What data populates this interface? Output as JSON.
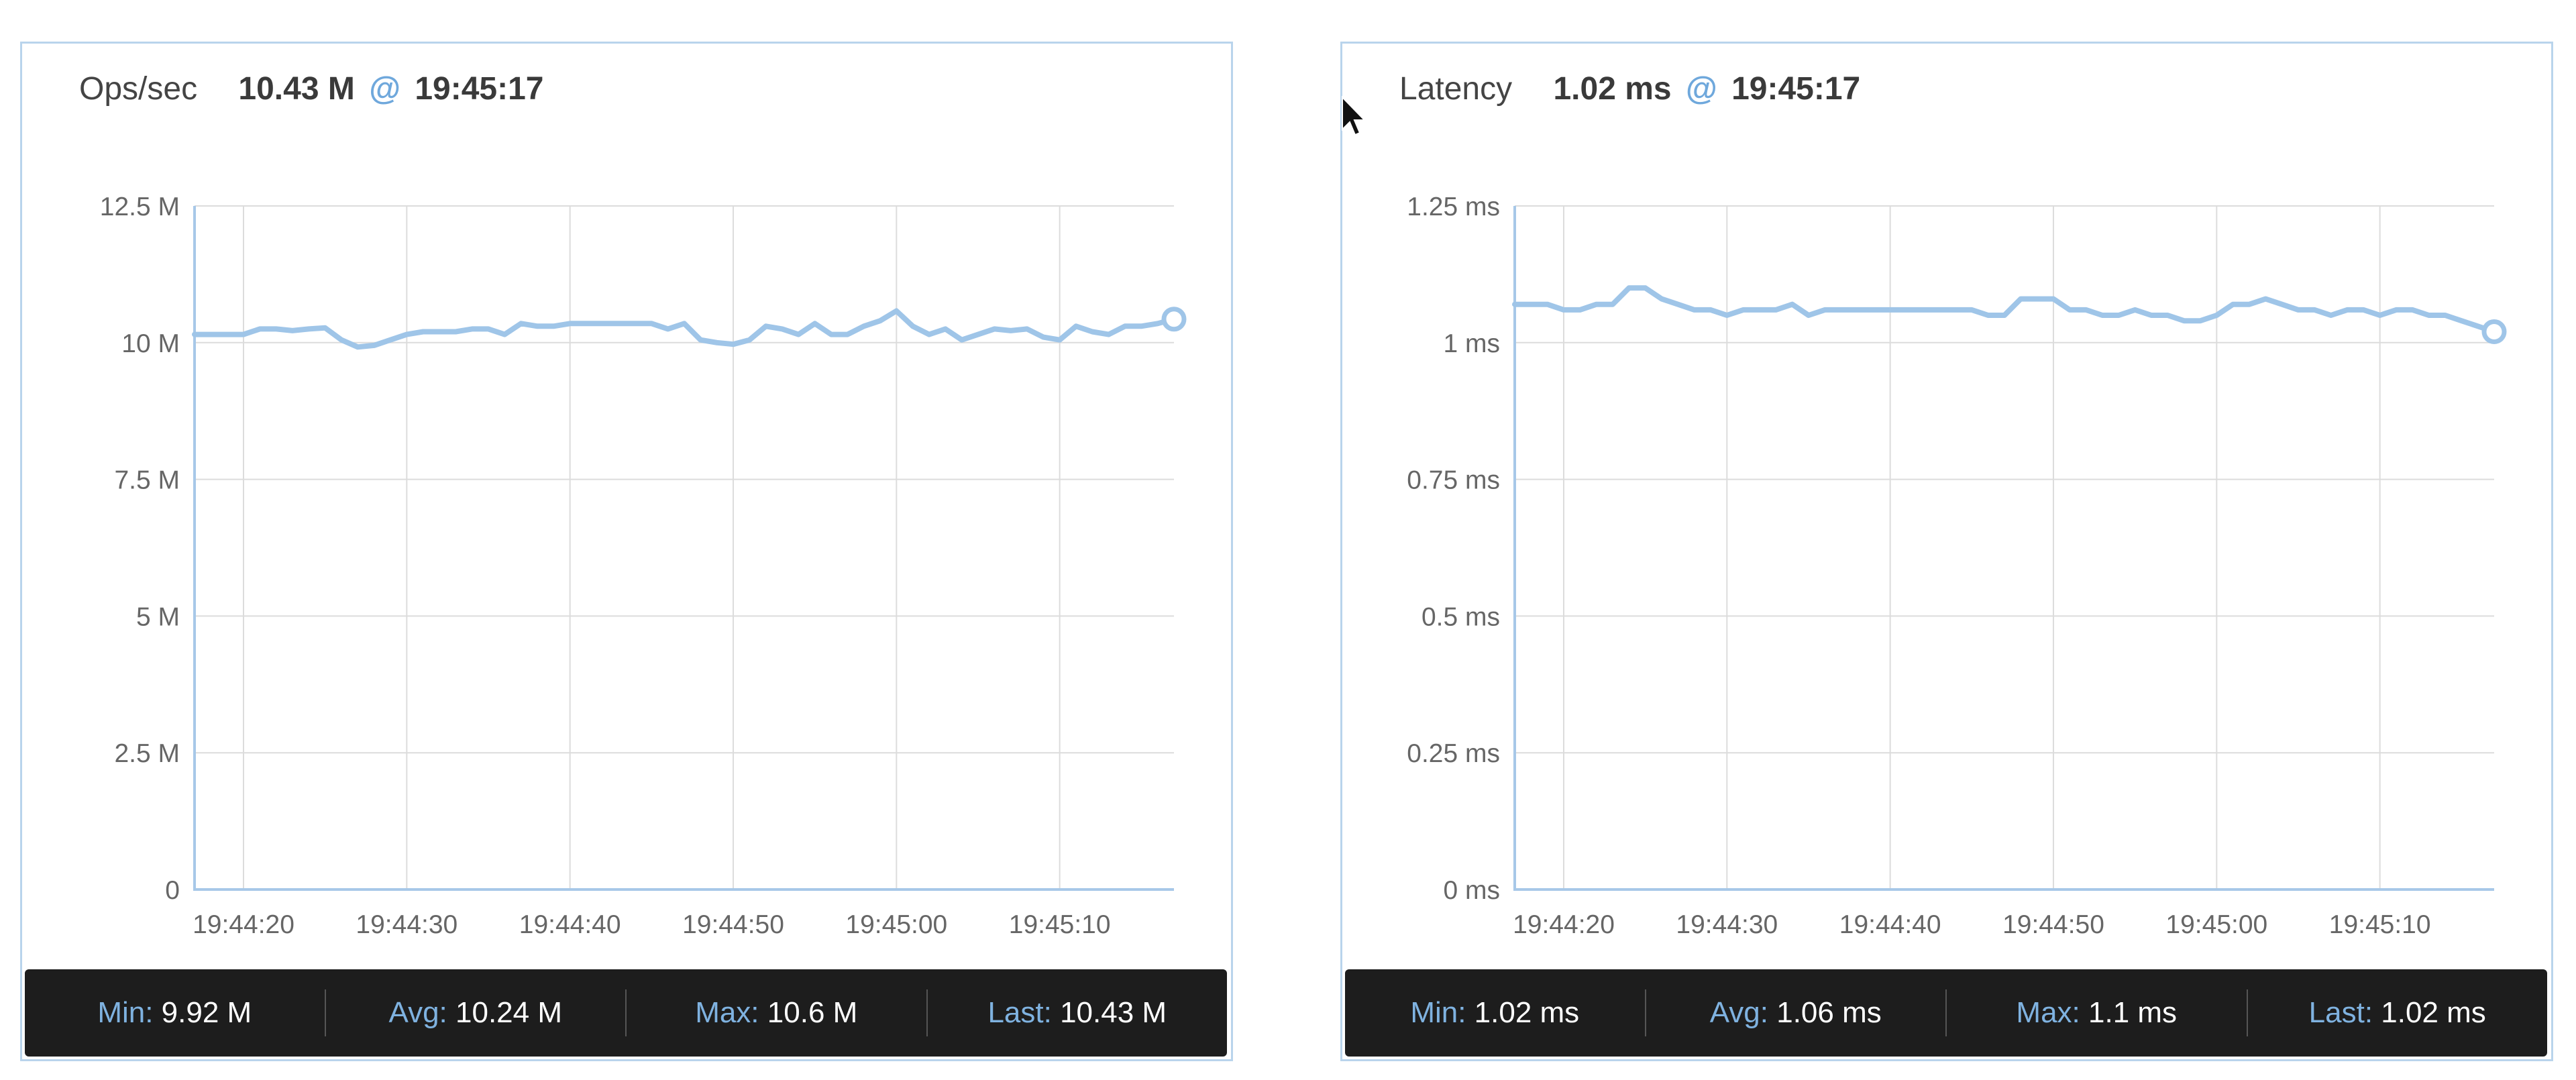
{
  "colors": {
    "line": "#9fc5e8",
    "border": "#b9d4ec",
    "grid": "#dcdcdc",
    "axis": "#a7c8e8",
    "footer_bg": "#1d1d1d",
    "stat_label": "#7fb2e0"
  },
  "panels": {
    "ops": {
      "metric": "Ops/sec",
      "value": "10.43 M",
      "at": "@",
      "time": "19:45:17",
      "stats": {
        "min_label": "Min:",
        "min": "9.92 M",
        "avg_label": "Avg:",
        "avg": "10.24 M",
        "max_label": "Max:",
        "max": "10.6 M",
        "last_label": "Last:",
        "last": "10.43 M"
      }
    },
    "latency": {
      "metric": "Latency",
      "value": "1.02 ms",
      "at": "@",
      "time": "19:45:17",
      "stats": {
        "min_label": "Min:",
        "min": "1.02 ms",
        "avg_label": "Avg:",
        "avg": "1.06 ms",
        "max_label": "Max:",
        "max": "1.1 ms",
        "last_label": "Last:",
        "last": "1.02 ms"
      }
    }
  },
  "chart_data": [
    {
      "type": "line",
      "x_start": "19:44:17",
      "x_end": "19:45:17",
      "xticks": [
        "19:44:20",
        "19:44:30",
        "19:44:40",
        "19:44:50",
        "19:45:00",
        "19:45:10"
      ],
      "yticks": [
        "0",
        "2.5 M",
        "5 M",
        "7.5 M",
        "10 M",
        "12.5 M"
      ],
      "ylim": [
        0,
        12.5
      ],
      "y_unit": "M",
      "grid": true,
      "x": [
        "19:44:17",
        "19:44:18",
        "19:44:19",
        "19:44:20",
        "19:44:21",
        "19:44:22",
        "19:44:23",
        "19:44:24",
        "19:44:25",
        "19:44:26",
        "19:44:27",
        "19:44:28",
        "19:44:29",
        "19:44:30",
        "19:44:31",
        "19:44:32",
        "19:44:33",
        "19:44:34",
        "19:44:35",
        "19:44:36",
        "19:44:37",
        "19:44:38",
        "19:44:39",
        "19:44:40",
        "19:44:41",
        "19:44:42",
        "19:44:43",
        "19:44:44",
        "19:44:45",
        "19:44:46",
        "19:44:47",
        "19:44:48",
        "19:44:49",
        "19:44:50",
        "19:44:51",
        "19:44:52",
        "19:44:53",
        "19:44:54",
        "19:44:55",
        "19:44:56",
        "19:44:57",
        "19:44:58",
        "19:44:59",
        "19:45:00",
        "19:45:01",
        "19:45:02",
        "19:45:03",
        "19:45:04",
        "19:45:05",
        "19:45:06",
        "19:45:07",
        "19:45:08",
        "19:45:09",
        "19:45:10",
        "19:45:11",
        "19:45:12",
        "19:45:13",
        "19:45:14",
        "19:45:15",
        "19:45:16",
        "19:45:17"
      ],
      "values": [
        10.15,
        10.15,
        10.15,
        10.15,
        10.25,
        10.25,
        10.22,
        10.25,
        10.27,
        10.05,
        9.92,
        9.95,
        10.05,
        10.15,
        10.2,
        10.2,
        10.2,
        10.25,
        10.25,
        10.15,
        10.35,
        10.3,
        10.3,
        10.35,
        10.35,
        10.35,
        10.35,
        10.35,
        10.35,
        10.25,
        10.35,
        10.05,
        10.0,
        9.97,
        10.05,
        10.3,
        10.25,
        10.15,
        10.35,
        10.15,
        10.15,
        10.3,
        10.4,
        10.58,
        10.3,
        10.15,
        10.25,
        10.05,
        10.15,
        10.25,
        10.22,
        10.25,
        10.1,
        10.05,
        10.3,
        10.2,
        10.15,
        10.3,
        10.3,
        10.35,
        10.43
      ]
    },
    {
      "type": "line",
      "x_start": "19:44:17",
      "x_end": "19:45:17",
      "xticks": [
        "19:44:20",
        "19:44:30",
        "19:44:40",
        "19:44:50",
        "19:45:00",
        "19:45:10"
      ],
      "yticks": [
        "0 ms",
        "0.25 ms",
        "0.5 ms",
        "0.75 ms",
        "1 ms",
        "1.25 ms"
      ],
      "ylim": [
        0,
        1.25
      ],
      "y_unit": "ms",
      "grid": true,
      "x": [
        "19:44:17",
        "19:44:18",
        "19:44:19",
        "19:44:20",
        "19:44:21",
        "19:44:22",
        "19:44:23",
        "19:44:24",
        "19:44:25",
        "19:44:26",
        "19:44:27",
        "19:44:28",
        "19:44:29",
        "19:44:30",
        "19:44:31",
        "19:44:32",
        "19:44:33",
        "19:44:34",
        "19:44:35",
        "19:44:36",
        "19:44:37",
        "19:44:38",
        "19:44:39",
        "19:44:40",
        "19:44:41",
        "19:44:42",
        "19:44:43",
        "19:44:44",
        "19:44:45",
        "19:44:46",
        "19:44:47",
        "19:44:48",
        "19:44:49",
        "19:44:50",
        "19:44:51",
        "19:44:52",
        "19:44:53",
        "19:44:54",
        "19:44:55",
        "19:44:56",
        "19:44:57",
        "19:44:58",
        "19:44:59",
        "19:45:00",
        "19:45:01",
        "19:45:02",
        "19:45:03",
        "19:45:04",
        "19:45:05",
        "19:45:06",
        "19:45:07",
        "19:45:08",
        "19:45:09",
        "19:45:10",
        "19:45:11",
        "19:45:12",
        "19:45:13",
        "19:45:14",
        "19:45:15",
        "19:45:16",
        "19:45:17"
      ],
      "values": [
        1.07,
        1.07,
        1.07,
        1.06,
        1.06,
        1.07,
        1.07,
        1.1,
        1.1,
        1.08,
        1.07,
        1.06,
        1.06,
        1.05,
        1.06,
        1.06,
        1.06,
        1.07,
        1.05,
        1.06,
        1.06,
        1.06,
        1.06,
        1.06,
        1.06,
        1.06,
        1.06,
        1.06,
        1.06,
        1.05,
        1.05,
        1.08,
        1.08,
        1.08,
        1.06,
        1.06,
        1.05,
        1.05,
        1.06,
        1.05,
        1.05,
        1.04,
        1.04,
        1.05,
        1.07,
        1.07,
        1.08,
        1.07,
        1.06,
        1.06,
        1.05,
        1.06,
        1.06,
        1.05,
        1.06,
        1.06,
        1.05,
        1.05,
        1.04,
        1.03,
        1.02
      ]
    }
  ]
}
